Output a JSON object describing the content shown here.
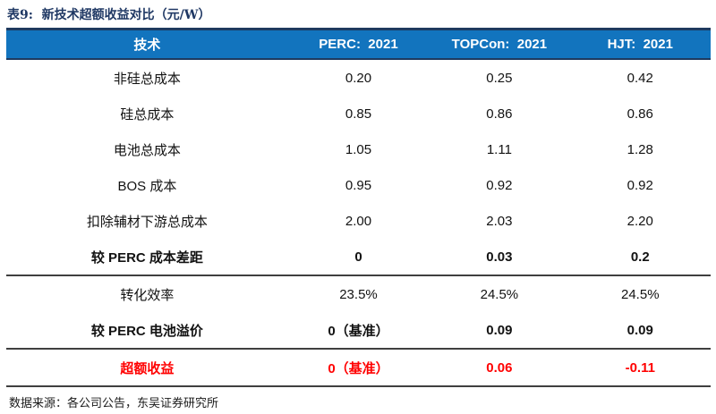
{
  "title": "表9:  新技术超额收益对比（元/W）",
  "colors": {
    "header_bg": "#1274be",
    "header_border": "#1e3a5f",
    "title_navy": "#1f3864",
    "accent_red": "#ff0000",
    "rule": "#3f3f3f"
  },
  "table": {
    "columns": [
      "技术",
      "PERC:  2021",
      "TOPCon:  2021",
      "HJT:  2021"
    ],
    "rows": [
      {
        "label": "非硅总成本",
        "values": [
          "0.20",
          "0.25",
          "0.42"
        ]
      },
      {
        "label": "硅总成本",
        "values": [
          "0.85",
          "0.86",
          "0.86"
        ]
      },
      {
        "label": "电池总成本",
        "values": [
          "1.05",
          "1.11",
          "1.28"
        ]
      },
      {
        "label": "BOS 成本",
        "values": [
          "0.95",
          "0.92",
          "0.92"
        ]
      },
      {
        "label": "扣除辅材下游总成本",
        "values": [
          "2.00",
          "2.03",
          "2.20"
        ]
      },
      {
        "label": "较 PERC 成本差距",
        "values": [
          "0",
          "0.03",
          "0.2"
        ]
      },
      {
        "label": "转化效率",
        "values": [
          "23.5%",
          "24.5%",
          "24.5%"
        ]
      },
      {
        "label": "较 PERC 电池溢价",
        "values": [
          "0（基准）",
          "0.09",
          "0.09"
        ]
      },
      {
        "label": "超额收益",
        "values": [
          "0（基准）",
          "0.06",
          "-0.11"
        ]
      }
    ]
  },
  "footer": {
    "source": "数据来源：各公司公告，东吴证券研究所"
  }
}
